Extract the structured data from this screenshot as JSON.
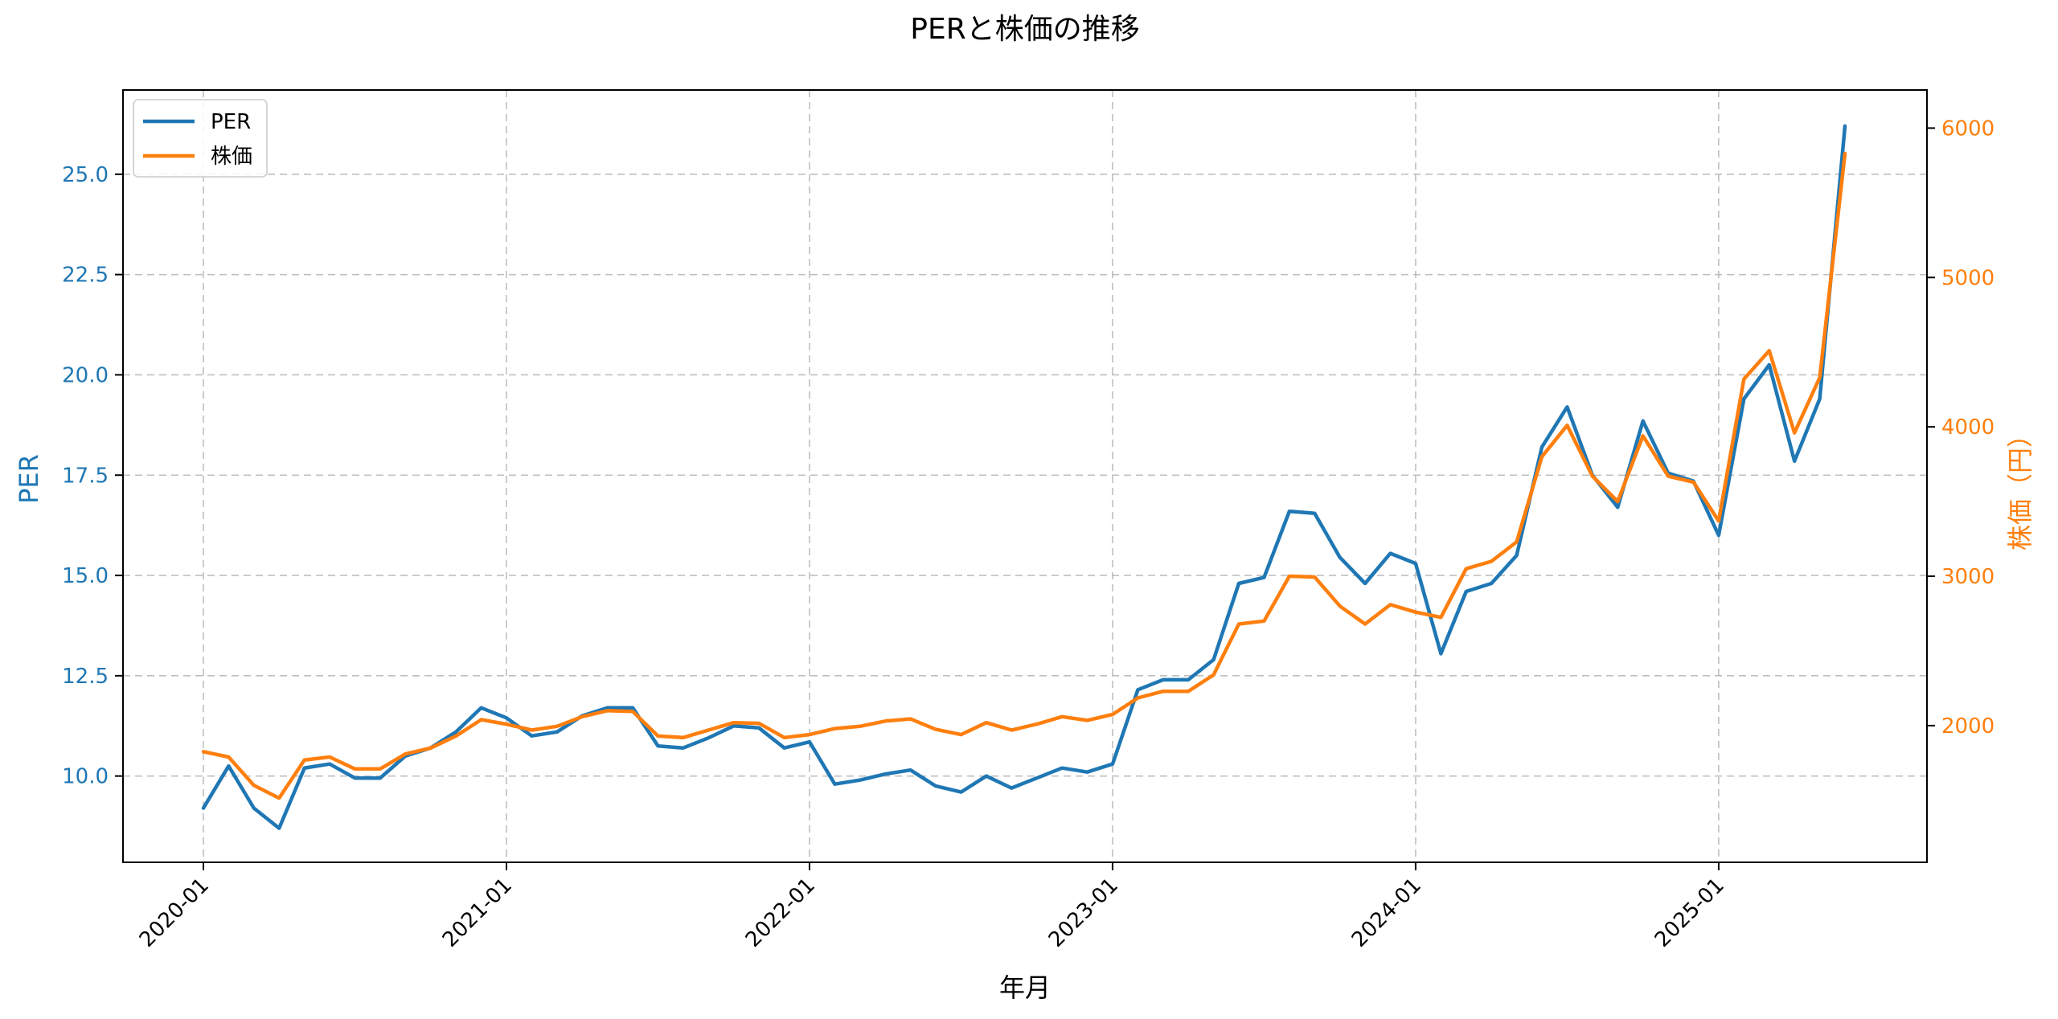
{
  "chart_data": {
    "type": "line",
    "title": "PERと株価の推移",
    "xlabel": "年月",
    "ylabel_left": "PER",
    "ylabel_right": "株価（円）",
    "x_ticks": [
      "2020-01",
      "2021-01",
      "2022-01",
      "2023-01",
      "2024-01",
      "2025-01"
    ],
    "y_left_ticks": [
      "10.0",
      "12.5",
      "15.0",
      "17.5",
      "20.0",
      "22.5",
      "25.0"
    ],
    "y_right_ticks": [
      "2000",
      "3000",
      "4000",
      "5000",
      "6000"
    ],
    "ylim_left": [
      7.85,
      27.1
    ],
    "ylim_right": [
      1085,
      6255
    ],
    "grid": true,
    "legend_position": "top-left",
    "colors": {
      "per": "#1f77b4",
      "price": "#ff7f0e"
    },
    "start_month": "2020-01",
    "series": [
      {
        "name": "PER",
        "axis": "left",
        "color": "#1f77b4",
        "values": [
          9.2,
          10.25,
          9.2,
          8.7,
          10.2,
          10.3,
          9.95,
          9.95,
          10.5,
          10.7,
          11.1,
          11.7,
          11.45,
          11.0,
          11.1,
          11.5,
          11.7,
          11.7,
          10.75,
          10.7,
          10.95,
          11.25,
          11.2,
          10.7,
          10.85,
          9.8,
          9.9,
          10.05,
          10.15,
          9.75,
          9.6,
          10.0,
          9.7,
          9.95,
          10.2,
          10.1,
          10.3,
          12.15,
          12.4,
          12.4,
          12.9,
          14.8,
          14.95,
          16.6,
          16.55,
          15.45,
          14.8,
          15.55,
          15.3,
          13.05,
          14.6,
          14.8,
          15.5,
          18.2,
          19.2,
          17.5,
          16.7,
          18.85,
          17.55,
          17.35,
          16.0,
          19.4,
          20.25,
          17.85,
          19.4,
          26.2
        ]
      },
      {
        "name": "株価",
        "axis": "right",
        "color": "#ff7f0e",
        "values": [
          1825,
          1790,
          1600,
          1515,
          1770,
          1790,
          1710,
          1710,
          1810,
          1850,
          1930,
          2040,
          2010,
          1970,
          1995,
          2060,
          2100,
          2095,
          1930,
          1920,
          1970,
          2020,
          2015,
          1920,
          1940,
          1980,
          1995,
          2030,
          2045,
          1975,
          1940,
          2020,
          1970,
          2010,
          2060,
          2035,
          2075,
          2185,
          2230,
          2230,
          2340,
          2680,
          2700,
          3000,
          2995,
          2800,
          2680,
          2810,
          2760,
          2725,
          3050,
          3100,
          3230,
          3800,
          4010,
          3670,
          3500,
          3940,
          3670,
          3630,
          3370,
          4320,
          4510,
          3960,
          4330,
          5830
        ]
      }
    ],
    "legend": [
      {
        "label": "PER",
        "color": "#1f77b4"
      },
      {
        "label": "株価",
        "color": "#ff7f0e"
      }
    ]
  }
}
